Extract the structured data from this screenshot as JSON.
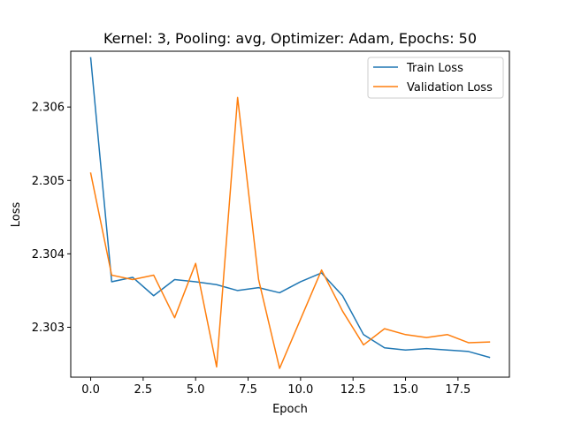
{
  "chart_data": {
    "type": "line",
    "title": "Kernel: 3, Pooling: avg, Optimizer: Adam, Epochs: 50",
    "xlabel": "Epoch",
    "ylabel": "Loss",
    "xlim": [
      -0.95,
      19.95
    ],
    "ylim": [
      2.30232,
      2.30676
    ],
    "x_ticks": [
      0.0,
      2.5,
      5.0,
      7.5,
      10.0,
      12.5,
      15.0,
      17.5
    ],
    "x_tick_labels": [
      "0.0",
      "2.5",
      "5.0",
      "7.5",
      "10.0",
      "12.5",
      "15.0",
      "17.5"
    ],
    "y_ticks": [
      2.303,
      2.304,
      2.305,
      2.306
    ],
    "y_tick_labels": [
      "2.303",
      "2.304",
      "2.305",
      "2.306"
    ],
    "grid": false,
    "legend_position": "top-right",
    "x": [
      0,
      1,
      2,
      3,
      4,
      5,
      6,
      7,
      8,
      9,
      10,
      11,
      12,
      13,
      14,
      15,
      16,
      17,
      18,
      19
    ],
    "series": [
      {
        "name": "Train Loss",
        "color": "#1f77b4",
        "values": [
          2.30667,
          2.30362,
          2.30368,
          2.30343,
          2.30365,
          2.30362,
          2.30358,
          2.3035,
          2.30354,
          2.30347,
          2.30362,
          2.30374,
          2.30343,
          2.3029,
          2.30272,
          2.30269,
          2.30271,
          2.30269,
          2.30267,
          2.30259
        ]
      },
      {
        "name": "Validation Loss",
        "color": "#ff7f0e",
        "values": [
          2.3051,
          2.30371,
          2.30365,
          2.30371,
          2.30313,
          2.30387,
          2.30246,
          2.30613,
          2.30365,
          2.30244,
          2.30311,
          2.30378,
          2.30322,
          2.30276,
          2.30298,
          2.3029,
          2.30286,
          2.3029,
          2.30279,
          2.3028
        ]
      }
    ]
  }
}
